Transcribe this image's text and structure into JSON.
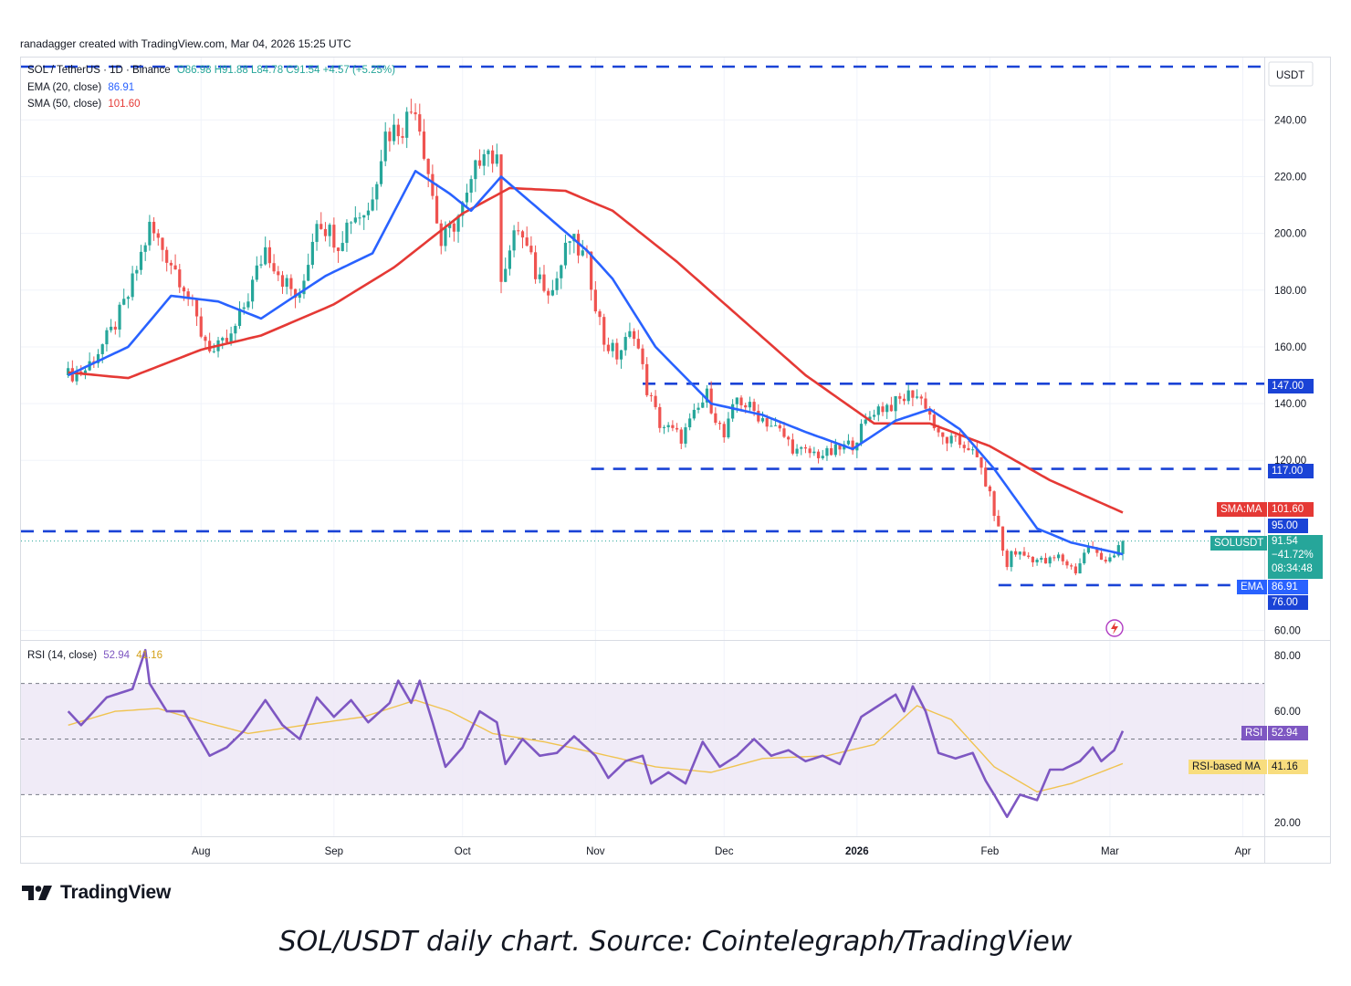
{
  "created_by": "ranadagger created with TradingView.com, Mar 04, 2026 15:25 UTC",
  "legend": {
    "symbol": "SOL / TetherUS · 1D · Binance",
    "ohlc": "O86.98 H91.88 L84.78 C91.54 +4.57 (+5.25%)",
    "ema_label": "EMA (20, close)",
    "ema_value": "86.91",
    "sma_label": "SMA (50, close)",
    "sma_value": "101.60",
    "rsi_label": "RSI (14, close)",
    "rsi_value": "52.94",
    "rsi_ma_value": "41.16"
  },
  "axis": {
    "currency": "USDT",
    "price_ticks": [
      "240.00",
      "220.00",
      "200.00",
      "180.00",
      "160.00",
      "140.00",
      "120.00",
      "60.00"
    ],
    "rsi_ticks": [
      "80.00",
      "60.00",
      "20.00"
    ],
    "time_ticks": [
      "Aug",
      "Sep",
      "Oct",
      "Nov",
      "Dec",
      "2026",
      "Feb",
      "Mar",
      "Apr"
    ]
  },
  "tags": {
    "level_147": "147.00",
    "level_117": "117.00",
    "sma_name": "SMA:MA",
    "sma_val": "101.60",
    "level_95": "95.00",
    "sol_name": "SOLUSDT",
    "sol_price": "91.54",
    "sol_change": "−41.72%",
    "sol_timer": "08:34:48",
    "ema_name": "EMA",
    "ema_val": "86.91",
    "level_76": "76.00",
    "rsi_name": "RSI",
    "rsi_val": "52.94",
    "rsi_ma_name": "RSI-based MA",
    "rsi_ma_val": "41.16"
  },
  "colors": {
    "up": "#26a69a",
    "down": "#ef5350",
    "ema": "#2962ff",
    "sma": "#e53935",
    "rsi": "#7e57c2",
    "rsi_ma": "#f0c350",
    "level": "#1a43d6"
  },
  "logo_text": "TradingView",
  "caption": "SOL/USDT daily chart. Source: Cointelegraph/TradingView",
  "chart_data": {
    "type": "candlestick",
    "symbol": "SOL/USDT",
    "timeframe": "1D",
    "ylim": [
      57,
      262
    ],
    "horizontal_levels": [
      147,
      117,
      95,
      76
    ],
    "price_path": [
      [
        "2025-07-01",
        150
      ],
      [
        "2025-07-05",
        152
      ],
      [
        "2025-07-11",
        165
      ],
      [
        "2025-07-15",
        178
      ],
      [
        "2025-07-20",
        202
      ],
      [
        "2025-07-25",
        190
      ],
      [
        "2025-07-28",
        182
      ],
      [
        "2025-08-01",
        165
      ],
      [
        "2025-08-04",
        158
      ],
      [
        "2025-08-08",
        163
      ],
      [
        "2025-08-12",
        178
      ],
      [
        "2025-08-16",
        195
      ],
      [
        "2025-08-20",
        184
      ],
      [
        "2025-08-24",
        176
      ],
      [
        "2025-08-28",
        206
      ],
      [
        "2025-09-02",
        197
      ],
      [
        "2025-09-05",
        206
      ],
      [
        "2025-09-09",
        208
      ],
      [
        "2025-09-13",
        235
      ],
      [
        "2025-09-17",
        238
      ],
      [
        "2025-09-20",
        246
      ],
      [
        "2025-09-23",
        222
      ],
      [
        "2025-09-26",
        196
      ],
      [
        "2025-09-30",
        206
      ],
      [
        "2025-10-02",
        212
      ],
      [
        "2025-10-06",
        232
      ],
      [
        "2025-10-09",
        224
      ],
      [
        "2025-10-10",
        186
      ],
      [
        "2025-10-14",
        202
      ],
      [
        "2025-10-18",
        186
      ],
      [
        "2025-10-22",
        180
      ],
      [
        "2025-10-26",
        198
      ],
      [
        "2025-10-30",
        190
      ],
      [
        "2025-11-03",
        162
      ],
      [
        "2025-11-06",
        157
      ],
      [
        "2025-11-10",
        166
      ],
      [
        "2025-11-13",
        145
      ],
      [
        "2025-11-16",
        133
      ],
      [
        "2025-11-21",
        128
      ],
      [
        "2025-11-27",
        143
      ],
      [
        "2025-12-01",
        128
      ],
      [
        "2025-12-04",
        142
      ],
      [
        "2025-12-09",
        136
      ],
      [
        "2025-12-14",
        130
      ],
      [
        "2025-12-18",
        123
      ],
      [
        "2025-12-25",
        122
      ],
      [
        "2025-12-31",
        126
      ],
      [
        "2026-01-05",
        138
      ],
      [
        "2026-01-10",
        140
      ],
      [
        "2026-01-14",
        144
      ],
      [
        "2026-01-17",
        140
      ],
      [
        "2026-01-20",
        128
      ],
      [
        "2026-01-27",
        125
      ],
      [
        "2026-01-30",
        117
      ],
      [
        "2026-02-02",
        102
      ],
      [
        "2026-02-05",
        82
      ],
      [
        "2026-02-06",
        88
      ],
      [
        "2026-02-10",
        86
      ],
      [
        "2026-02-14",
        84
      ],
      [
        "2026-02-17",
        86
      ],
      [
        "2026-02-21",
        81
      ],
      [
        "2026-02-24",
        90
      ],
      [
        "2026-02-27",
        85
      ],
      [
        "2026-03-02",
        86.98
      ],
      [
        "2026-03-04",
        91.54
      ]
    ],
    "last_candle": {
      "date": "2026-03-04",
      "open": 86.98,
      "high": 91.88,
      "low": 84.78,
      "close": 91.54,
      "change": 4.57,
      "change_pct": 5.25
    },
    "series": [
      {
        "name": "EMA (20, close)",
        "last": 86.91,
        "points": [
          [
            "2025-07-01",
            150
          ],
          [
            "2025-07-15",
            160
          ],
          [
            "2025-07-25",
            178
          ],
          [
            "2025-08-05",
            176
          ],
          [
            "2025-08-15",
            170
          ],
          [
            "2025-08-30",
            185
          ],
          [
            "2025-09-10",
            193
          ],
          [
            "2025-09-20",
            222
          ],
          [
            "2025-09-28",
            214
          ],
          [
            "2025-10-03",
            208
          ],
          [
            "2025-10-10",
            220
          ],
          [
            "2025-10-20",
            207
          ],
          [
            "2025-10-30",
            194
          ],
          [
            "2025-11-05",
            184
          ],
          [
            "2025-11-15",
            160
          ],
          [
            "2025-11-28",
            140
          ],
          [
            "2025-12-10",
            136
          ],
          [
            "2025-12-20",
            130
          ],
          [
            "2025-12-31",
            124
          ],
          [
            "2026-01-10",
            134
          ],
          [
            "2026-01-18",
            138
          ],
          [
            "2026-01-25",
            131
          ],
          [
            "2026-02-02",
            117
          ],
          [
            "2026-02-12",
            96
          ],
          [
            "2026-02-20",
            91
          ],
          [
            "2026-03-04",
            86.91
          ]
        ]
      },
      {
        "name": "SMA (50, close)",
        "last": 101.6,
        "points": [
          [
            "2025-07-01",
            151
          ],
          [
            "2025-07-15",
            149
          ],
          [
            "2025-08-01",
            159
          ],
          [
            "2025-08-15",
            164
          ],
          [
            "2025-09-01",
            175
          ],
          [
            "2025-09-15",
            188
          ],
          [
            "2025-10-01",
            207
          ],
          [
            "2025-10-12",
            216
          ],
          [
            "2025-10-25",
            215
          ],
          [
            "2025-11-05",
            208
          ],
          [
            "2025-11-20",
            190
          ],
          [
            "2025-12-05",
            170
          ],
          [
            "2025-12-20",
            150
          ],
          [
            "2026-01-05",
            133
          ],
          [
            "2026-01-18",
            133
          ],
          [
            "2026-02-01",
            125
          ],
          [
            "2026-02-15",
            113
          ],
          [
            "2026-03-04",
            101.6
          ]
        ]
      }
    ],
    "rsi": {
      "ylim": [
        15,
        85
      ],
      "bands": [
        30,
        50,
        70
      ],
      "value": 52.94,
      "ma_value": 41.16,
      "rsi_points": [
        [
          "2025-07-01",
          60
        ],
        [
          "2025-07-04",
          55
        ],
        [
          "2025-07-10",
          65
        ],
        [
          "2025-07-16",
          68
        ],
        [
          "2025-07-19",
          82
        ],
        [
          "2025-07-20",
          70
        ],
        [
          "2025-07-24",
          60
        ],
        [
          "2025-07-28",
          60
        ],
        [
          "2025-08-03",
          44
        ],
        [
          "2025-08-07",
          47
        ],
        [
          "2025-08-11",
          53
        ],
        [
          "2025-08-16",
          64
        ],
        [
          "2025-08-20",
          55
        ],
        [
          "2025-08-24",
          50
        ],
        [
          "2025-08-28",
          65
        ],
        [
          "2025-09-01",
          58
        ],
        [
          "2025-09-05",
          64
        ],
        [
          "2025-09-09",
          56
        ],
        [
          "2025-09-14",
          63
        ],
        [
          "2025-09-16",
          71
        ],
        [
          "2025-09-19",
          63
        ],
        [
          "2025-09-21",
          71
        ],
        [
          "2025-09-24",
          56
        ],
        [
          "2025-09-27",
          40
        ],
        [
          "2025-10-01",
          47
        ],
        [
          "2025-10-05",
          60
        ],
        [
          "2025-10-09",
          56
        ],
        [
          "2025-10-11",
          41
        ],
        [
          "2025-10-15",
          50
        ],
        [
          "2025-10-19",
          44
        ],
        [
          "2025-10-23",
          45
        ],
        [
          "2025-10-27",
          51
        ],
        [
          "2025-11-01",
          44
        ],
        [
          "2025-11-04",
          36
        ],
        [
          "2025-11-08",
          42
        ],
        [
          "2025-11-12",
          44
        ],
        [
          "2025-11-14",
          34
        ],
        [
          "2025-11-18",
          38
        ],
        [
          "2025-11-22",
          34
        ],
        [
          "2025-11-26",
          49
        ],
        [
          "2025-11-30",
          40
        ],
        [
          "2025-12-04",
          44
        ],
        [
          "2025-12-08",
          50
        ],
        [
          "2025-12-12",
          44
        ],
        [
          "2025-12-16",
          46
        ],
        [
          "2025-12-20",
          42
        ],
        [
          "2025-12-24",
          44
        ],
        [
          "2025-12-28",
          41
        ],
        [
          "2026-01-02",
          58
        ],
        [
          "2026-01-06",
          62
        ],
        [
          "2026-01-10",
          66
        ],
        [
          "2026-01-12",
          60
        ],
        [
          "2026-01-14",
          69
        ],
        [
          "2026-01-17",
          60
        ],
        [
          "2026-01-20",
          45
        ],
        [
          "2026-01-24",
          43
        ],
        [
          "2026-01-28",
          45
        ],
        [
          "2026-01-31",
          35
        ],
        [
          "2026-02-02",
          30
        ],
        [
          "2026-02-05",
          22
        ],
        [
          "2026-02-08",
          30
        ],
        [
          "2026-02-12",
          28
        ],
        [
          "2026-02-15",
          39
        ],
        [
          "2026-02-18",
          39
        ],
        [
          "2026-02-22",
          42
        ],
        [
          "2026-02-25",
          47
        ],
        [
          "2026-02-27",
          42
        ],
        [
          "2026-03-02",
          46
        ],
        [
          "2026-03-04",
          52.94
        ]
      ],
      "ma_points": [
        [
          "2025-07-01",
          55
        ],
        [
          "2025-07-12",
          60
        ],
        [
          "2025-07-22",
          61
        ],
        [
          "2025-08-02",
          56
        ],
        [
          "2025-08-12",
          52
        ],
        [
          "2025-08-25",
          55
        ],
        [
          "2025-09-08",
          58
        ],
        [
          "2025-09-20",
          64
        ],
        [
          "2025-09-28",
          60
        ],
        [
          "2025-10-08",
          52
        ],
        [
          "2025-10-20",
          49
        ],
        [
          "2025-11-01",
          45
        ],
        [
          "2025-11-15",
          40
        ],
        [
          "2025-11-28",
          38
        ],
        [
          "2025-12-10",
          43
        ],
        [
          "2025-12-25",
          44
        ],
        [
          "2026-01-05",
          48
        ],
        [
          "2026-01-15",
          62
        ],
        [
          "2026-01-23",
          57
        ],
        [
          "2026-02-02",
          40
        ],
        [
          "2026-02-12",
          31
        ],
        [
          "2026-02-20",
          34
        ],
        [
          "2026-03-04",
          41.16
        ]
      ]
    }
  }
}
